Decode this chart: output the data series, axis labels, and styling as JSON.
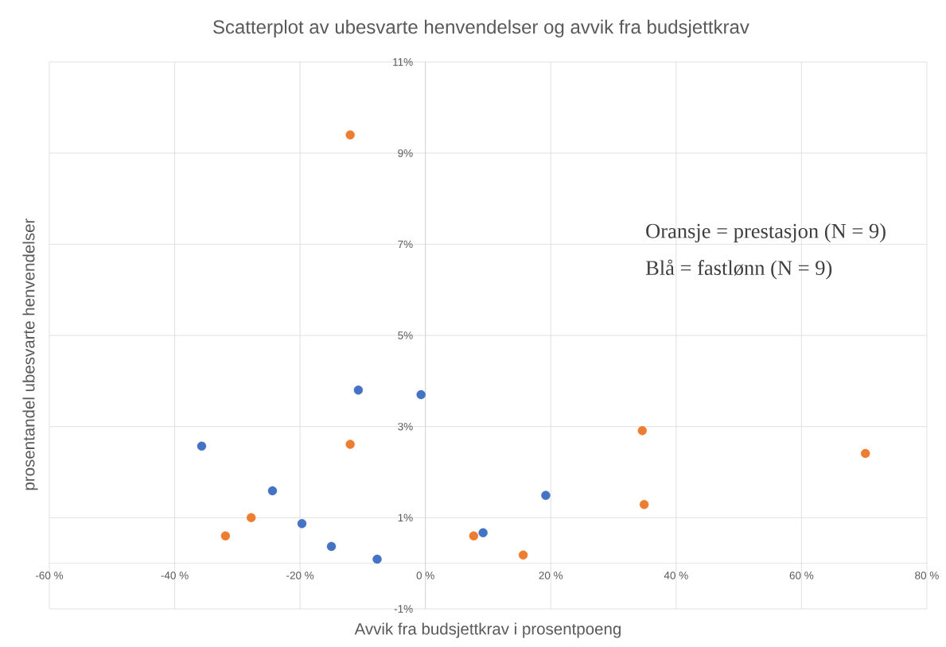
{
  "chart_data": {
    "type": "scatter",
    "title": "Scatterplot av ubesvarte henvendelser og avvik fra budsjettkrav",
    "xlabel": "Avvik fra budsjettkrav i prosentpoeng",
    "ylabel": "prosentandel  ubesvarte henvendelser",
    "annotations": [
      "Oransje = prestasjon (N = 9)",
      "Blå = fastlønn (N = 9)"
    ],
    "series": [
      {
        "color": "#4472c4",
        "x": [
          -35.7,
          -24.4,
          -19.7,
          -15.0,
          -10.7,
          -7.7,
          -0.7,
          9.2,
          19.2
        ],
        "values": [
          2.57,
          1.59,
          0.87,
          0.37,
          3.8,
          0.09,
          3.7,
          0.67,
          1.49
        ]
      },
      {
        "color": "#ed7d31",
        "x": [
          -31.9,
          -27.8,
          -12.0,
          -12.0,
          7.7,
          15.6,
          34.6,
          34.9,
          70.2
        ],
        "values": [
          0.6,
          1.0,
          9.4,
          2.61,
          0.6,
          0.18,
          2.91,
          1.29,
          2.41
        ]
      }
    ],
    "xlim": [
      -60,
      80
    ],
    "ylim": [
      -1,
      11
    ],
    "xticks": [
      {
        "value": -60,
        "label": "-60 %"
      },
      {
        "value": -40,
        "label": "-40 %"
      },
      {
        "value": -20,
        "label": "-20 %"
      },
      {
        "value": 0,
        "label": "0 %"
      },
      {
        "value": 20,
        "label": "20 %"
      },
      {
        "value": 40,
        "label": "40 %"
      },
      {
        "value": 60,
        "label": "60 %"
      },
      {
        "value": 80,
        "label": "80 %"
      }
    ],
    "yticks": [
      {
        "value": -1,
        "label": "-1%"
      },
      {
        "value": 1,
        "label": "1%"
      },
      {
        "value": 3,
        "label": "3%"
      },
      {
        "value": 5,
        "label": "5%"
      },
      {
        "value": 7,
        "label": "7%"
      },
      {
        "value": 9,
        "label": "9%"
      },
      {
        "value": 11,
        "label": "11%"
      }
    ],
    "grid": true,
    "marker": "circle"
  }
}
